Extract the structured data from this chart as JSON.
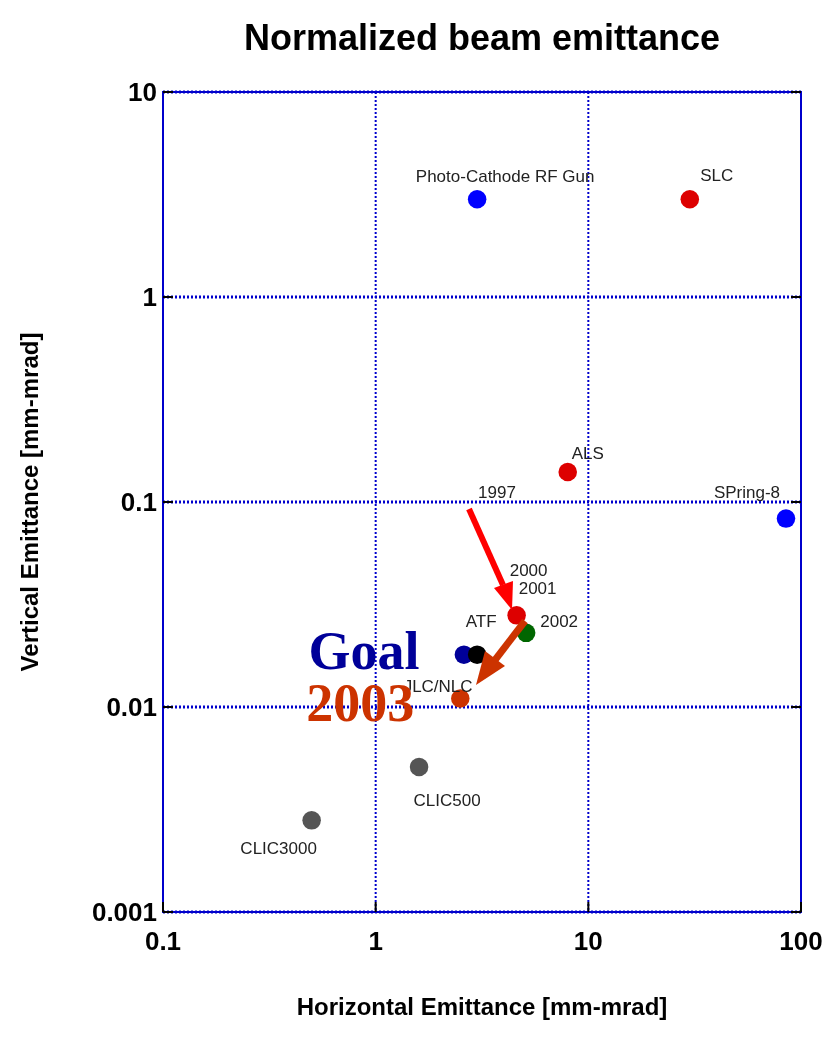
{
  "chart_data": {
    "type": "scatter",
    "title": "Normalized beam emittance",
    "xlabel": "Horizontal Emittance [mm-mrad]",
    "ylabel": "Vertical Emittance [mm-mrad]",
    "log": "xy",
    "xlim": [
      0.1,
      100
    ],
    "ylim": [
      0.001,
      10
    ],
    "xticks": [
      0.1,
      1,
      10,
      100
    ],
    "yticks": [
      0.001,
      0.01,
      0.1,
      1,
      10
    ],
    "grid": true,
    "marker": "circle",
    "series": [
      {
        "x": [
          3,
          30,
          8,
          85,
          4.6,
          2.6,
          3.0,
          5.1,
          2.5,
          1.6,
          0.5
        ],
        "values": [
          3,
          3,
          0.14,
          0.083,
          0.028,
          0.018,
          0.018,
          0.023,
          0.011,
          0.0051,
          0.0028
        ],
        "colors": [
          "#0000ff",
          "#dd0000",
          "#dd0000",
          "#0000ff",
          "#dd0000",
          "#000099",
          "#000000",
          "#006600",
          "#cc3300",
          "#555555",
          "#555555"
        ]
      }
    ],
    "annotations": [
      {
        "text": "Photo-Cathode RF Gun",
        "x": 3,
        "y": 3
      },
      {
        "text": "SLC",
        "x": 30,
        "y": 3
      },
      {
        "text": "ALS",
        "x": 8,
        "y": 0.14
      },
      "1997",
      {
        "text": "SPring-8",
        "x": 85,
        "y": 0.083
      },
      {
        "text": "2000",
        "x": 4.6,
        "y": 0.028
      },
      {
        "text": "2001",
        "x": 4.6,
        "y": 0.028
      },
      {
        "text": "2002",
        "x": 5.1,
        "y": 0.023
      },
      {
        "text": "ATF",
        "x": 3.0,
        "y": 0.018
      },
      {
        "text": "JLC/NLC",
        "x": 3.0,
        "y": 0.018
      },
      {
        "text": "Goal",
        "x": 2.6,
        "y": 0.018
      },
      {
        "text": "2003",
        "x": 2.5,
        "y": 0.011
      },
      {
        "text": "CLIC500",
        "x": 1.6,
        "y": 0.0051
      },
      {
        "text": "CLIC3000",
        "x": 0.5,
        "y": 0.0028
      }
    ]
  }
}
